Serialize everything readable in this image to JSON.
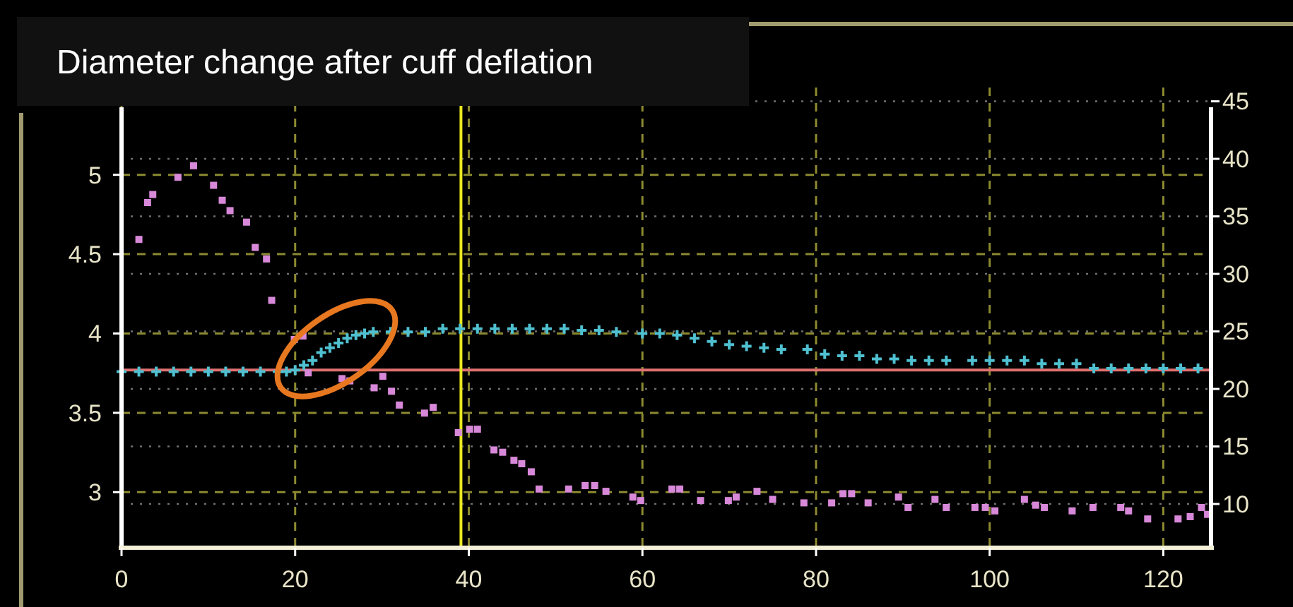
{
  "chart_data": {
    "type": "scatter",
    "title": "Diameter change after cuff deflation",
    "xlim": [
      0,
      125.5
    ],
    "xticks": [
      0,
      20,
      40,
      60,
      80,
      100,
      120
    ],
    "ylim": [
      2.65,
      5.55
    ],
    "yticks": [
      3,
      3.5,
      4,
      4.5,
      5
    ],
    "y2lim": [
      6.2,
      46.2
    ],
    "y2ticks": [
      10,
      15,
      20,
      25,
      30,
      35,
      40,
      45
    ],
    "grid": true,
    "series": [
      {
        "color": "#4fc0d0",
        "marker": "cross",
        "x": [
          0,
          2,
          4,
          6,
          8,
          10,
          12,
          14,
          16,
          18,
          19,
          20,
          21,
          22,
          23,
          24,
          25,
          26,
          27,
          28,
          29,
          31,
          33,
          35,
          37,
          39,
          41,
          43,
          45,
          47,
          49,
          51,
          53,
          55,
          57,
          60,
          62,
          64,
          66,
          68,
          70,
          72,
          74,
          76,
          79,
          81,
          83,
          85,
          87,
          89,
          91,
          93,
          95,
          98,
          100,
          102,
          104,
          106,
          108,
          110,
          112,
          114,
          116,
          118,
          120,
          122,
          124
        ],
        "values": [
          3.76,
          3.76,
          3.76,
          3.76,
          3.76,
          3.76,
          3.76,
          3.76,
          3.76,
          3.76,
          3.76,
          3.77,
          3.8,
          3.83,
          3.88,
          3.91,
          3.94,
          3.97,
          3.99,
          4.0,
          4.01,
          4.01,
          4.01,
          4.01,
          4.03,
          4.03,
          4.03,
          4.03,
          4.03,
          4.03,
          4.03,
          4.03,
          4.02,
          4.02,
          4.01,
          4.0,
          4.0,
          3.99,
          3.97,
          3.95,
          3.93,
          3.92,
          3.91,
          3.9,
          3.9,
          3.87,
          3.86,
          3.86,
          3.84,
          3.84,
          3.83,
          3.83,
          3.83,
          3.83,
          3.83,
          3.83,
          3.83,
          3.81,
          3.81,
          3.81,
          3.78,
          3.78,
          3.78,
          3.78,
          3.78,
          3.78,
          3.78
        ]
      },
      {
        "color": "#d888d8",
        "marker": "square",
        "axis": "y2",
        "x": [
          2.0,
          3.0,
          3.6,
          6.5,
          8.3,
          10.6,
          11.6,
          12.5,
          14.4,
          15.4,
          16.7,
          17.3,
          19.9,
          20.9,
          21.5,
          25.4,
          26.3,
          29.1,
          30.1,
          31.1,
          32.0,
          34.9,
          35.9,
          38.8,
          40.1,
          41.0,
          42.9,
          43.9,
          45.2,
          46.1,
          47.2,
          48.1,
          51.5,
          53.4,
          54.5,
          55.8,
          58.9,
          59.8,
          63.4,
          64.3,
          66.7,
          69.9,
          70.8,
          73.2,
          75.0,
          78.6,
          81.8,
          83.1,
          84.1,
          86.0,
          89.5,
          90.6,
          93.7,
          95.0,
          98.3,
          99.5,
          100.6,
          104.0,
          105.3,
          106.3,
          109.5,
          111.9,
          115.1,
          116.0,
          118.2,
          121.7,
          123.1,
          124.4,
          125.1
        ],
        "values": [
          33.0,
          36.2,
          36.9,
          38.4,
          39.4,
          37.7,
          36.4,
          35.5,
          34.5,
          32.3,
          31.3,
          27.7,
          24.3,
          24.6,
          21.4,
          20.9,
          20.7,
          20.1,
          21.1,
          19.8,
          18.6,
          17.9,
          18.4,
          16.2,
          16.5,
          16.5,
          14.7,
          14.5,
          13.8,
          13.5,
          12.8,
          11.3,
          11.3,
          11.6,
          11.6,
          11.1,
          10.6,
          10.3,
          11.3,
          11.3,
          10.3,
          10.3,
          10.6,
          11.1,
          10.4,
          10.1,
          10.1,
          10.9,
          10.9,
          10.1,
          10.6,
          9.7,
          10.4,
          9.7,
          9.7,
          9.7,
          9.4,
          10.4,
          9.9,
          9.7,
          9.4,
          9.7,
          9.7,
          9.4,
          8.7,
          8.7,
          8.9,
          9.7,
          9.1
        ]
      }
    ],
    "ref_lines": [
      {
        "axis": "y",
        "value": 3.77,
        "color": "#e07070"
      },
      {
        "axis": "x",
        "value": 39.1,
        "color": "#e8e820"
      }
    ]
  }
}
